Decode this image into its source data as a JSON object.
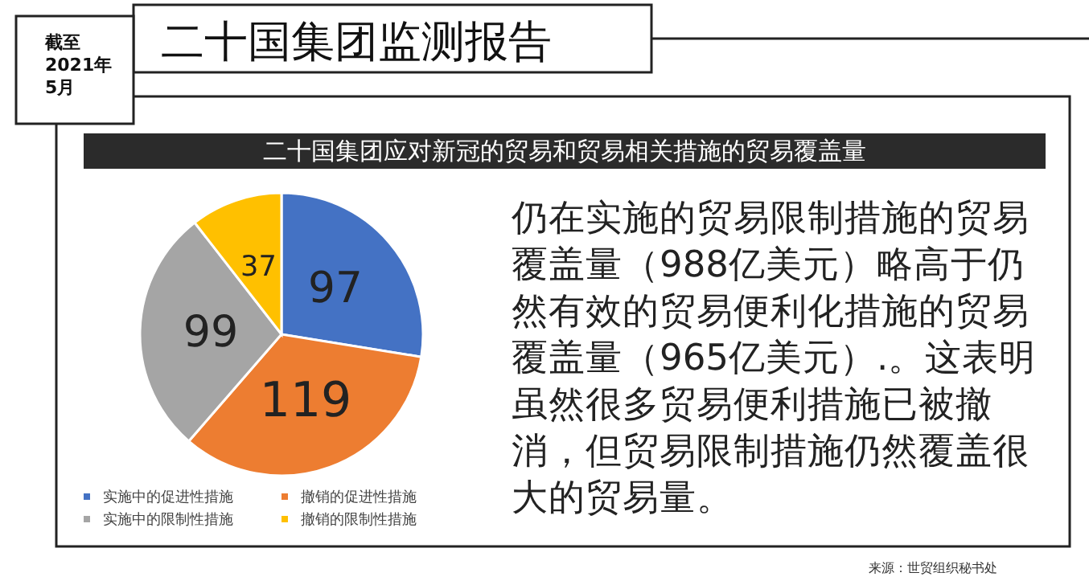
{
  "chart_data": {
    "type": "pie",
    "title": "二十国集团应对新冠的贸易和贸易相关措施的贸易覆盖量",
    "categories": [
      "实施中的促进性措施",
      "撤销的促进性措施",
      "实施中的限制性措施",
      "撤销的限制性措施"
    ],
    "values": [
      97,
      119,
      99,
      37
    ],
    "colors": [
      "#4472c4",
      "#ed7d31",
      "#a5a5a5",
      "#ffc000"
    ],
    "data_labels": true,
    "legend": "bottom",
    "annotations": [
      "二十国集团监测报告",
      "截至\n2021年\n5月",
      "仍在实施的贸易限制措施的贸易覆盖量（988亿美元）略高于仍然有效的贸易便利化措施的贸易覆盖量（965亿美元）.。这表明虽然很多贸易便利措施已被撤消，但贸易限制措施仍然覆盖很大的贸易量。",
      "来源：世贸组织秘书处"
    ]
  }
}
